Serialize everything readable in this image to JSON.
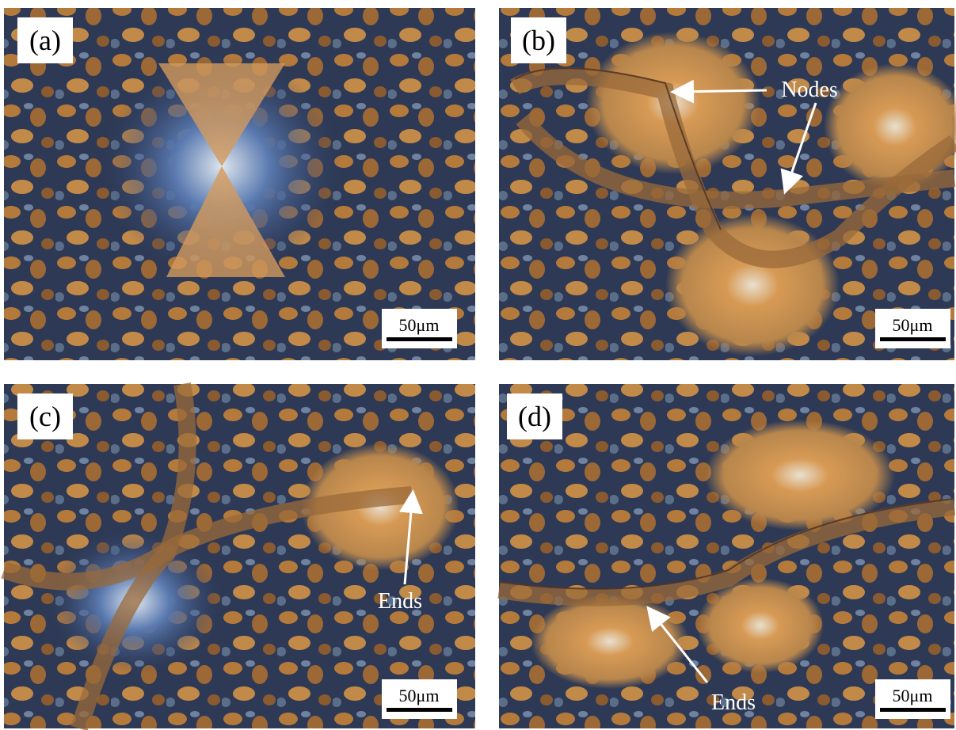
{
  "panels": [
    {
      "label": "(a)",
      "scale": "50μm"
    },
    {
      "label": "(b)",
      "scale": "50μm",
      "annotations": [
        "Nodes"
      ]
    },
    {
      "label": "(c)",
      "scale": "50μm",
      "annotations": [
        "Ends"
      ]
    },
    {
      "label": "(d)",
      "scale": "50μm",
      "annotations": [
        "Ends"
      ]
    }
  ]
}
